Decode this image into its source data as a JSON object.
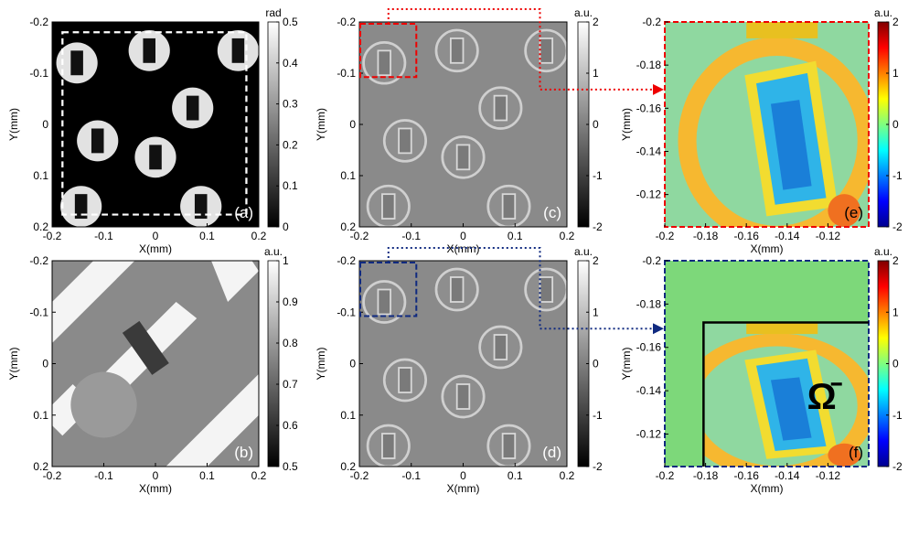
{
  "panels": [
    {
      "label": "(a)",
      "xlabel": "X(mm)",
      "ylabel": "Y(mm)",
      "xlim": [
        -0.2,
        0.2
      ],
      "ylim": [
        -0.2,
        0.2
      ],
      "xticks": [
        -0.2,
        -0.1,
        0,
        0.1,
        0.2
      ],
      "yticks": [
        -0.2,
        -0.1,
        0,
        0.1,
        0.2
      ],
      "colorbar": {
        "unit": "rad",
        "colormap": "gray",
        "lim": [
          0,
          0.5
        ],
        "ticks": [
          0,
          0.1,
          0.2,
          0.3,
          0.4,
          0.5
        ]
      }
    },
    {
      "label": "(c)",
      "xlabel": "X(mm)",
      "ylabel": "Y(mm)",
      "xlim": [
        -0.2,
        0.2
      ],
      "ylim": [
        -0.2,
        0.2
      ],
      "xticks": [
        -0.2,
        -0.1,
        0,
        0.1,
        0.2
      ],
      "yticks": [
        -0.2,
        -0.1,
        0,
        0.1,
        0.2
      ],
      "colorbar": {
        "unit": "a.u.",
        "colormap": "gray",
        "lim": [
          -2,
          2
        ],
        "ticks": [
          -2,
          -1,
          0,
          1,
          2
        ]
      }
    },
    {
      "label": "(e)",
      "xlabel": "X(mm)",
      "ylabel": "Y(mm)",
      "xlim": [
        -0.2,
        -0.1
      ],
      "ylim": [
        -0.2,
        -0.105
      ],
      "xticks": [
        -0.2,
        -0.18,
        -0.16,
        -0.14,
        -0.12
      ],
      "yticks": [
        -0.2,
        -0.18,
        -0.16,
        -0.14,
        -0.12
      ],
      "colorbar": {
        "unit": "a.u.",
        "colormap": "jet",
        "lim": [
          -2,
          2
        ],
        "ticks": [
          -2,
          -1,
          0,
          1,
          2
        ]
      }
    },
    {
      "label": "(b)",
      "xlabel": "X(mm)",
      "ylabel": "Y(mm)",
      "xlim": [
        -0.2,
        0.2
      ],
      "ylim": [
        -0.2,
        0.2
      ],
      "xticks": [
        -0.2,
        -0.1,
        0,
        0.1,
        0.2
      ],
      "yticks": [
        -0.2,
        -0.1,
        0,
        0.1,
        0.2
      ],
      "colorbar": {
        "unit": "a.u.",
        "colormap": "gray",
        "lim": [
          0.5,
          1
        ],
        "ticks": [
          0.5,
          0.6,
          0.7,
          0.8,
          0.9,
          1
        ]
      }
    },
    {
      "label": "(d)",
      "xlabel": "X(mm)",
      "ylabel": "Y(mm)",
      "xlim": [
        -0.2,
        0.2
      ],
      "ylim": [
        -0.2,
        0.2
      ],
      "xticks": [
        -0.2,
        -0.1,
        0,
        0.1,
        0.2
      ],
      "yticks": [
        -0.2,
        -0.1,
        0,
        0.1,
        0.2
      ],
      "colorbar": {
        "unit": "a.u.",
        "colormap": "gray",
        "lim": [
          -2,
          2
        ],
        "ticks": [
          -2,
          -1,
          0,
          1,
          2
        ]
      }
    },
    {
      "label": "(f)",
      "xlabel": "X(mm)",
      "ylabel": "Y(mm)",
      "xlim": [
        -0.2,
        -0.1
      ],
      "ylim": [
        -0.2,
        -0.105
      ],
      "xticks": [
        -0.2,
        -0.18,
        -0.16,
        -0.14,
        -0.12
      ],
      "yticks": [
        -0.2,
        -0.18,
        -0.16,
        -0.14,
        -0.12
      ],
      "colorbar": {
        "unit": "a.u.",
        "colormap": "jet",
        "lim": [
          -2,
          2
        ],
        "ticks": [
          -2,
          -1,
          0,
          1,
          2
        ]
      },
      "annotation": "Ω̄"
    }
  ]
}
